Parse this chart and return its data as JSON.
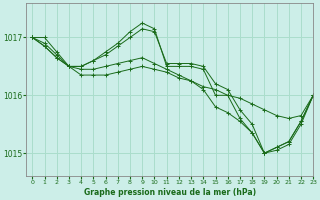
{
  "title": "Graphe pression niveau de la mer (hPa)",
  "bg_color": "#cceee8",
  "grid_color": "#aaddcc",
  "line_color": "#1a6b1a",
  "xlim": [
    -0.5,
    23
  ],
  "ylim": [
    1014.6,
    1017.6
  ],
  "yticks": [
    1015,
    1016,
    1017
  ],
  "xticks": [
    0,
    1,
    2,
    3,
    4,
    5,
    6,
    7,
    8,
    9,
    10,
    11,
    12,
    13,
    14,
    15,
    16,
    17,
    18,
    19,
    20,
    21,
    22,
    23
  ],
  "figwidth": 3.2,
  "figheight": 2.0,
  "dpi": 100,
  "series": [
    {
      "x": [
        0,
        1,
        2,
        3,
        4,
        5,
        6,
        7,
        8,
        9,
        10,
        11,
        12,
        13,
        14,
        15,
        16,
        17,
        18,
        19,
        20,
        21,
        22,
        23
      ],
      "y": [
        1017.0,
        1017.0,
        1016.75,
        1016.5,
        1016.45,
        1016.45,
        1016.5,
        1016.55,
        1016.6,
        1016.65,
        1016.55,
        1016.45,
        1016.35,
        1016.25,
        1016.15,
        1016.1,
        1016.0,
        1015.95,
        1015.85,
        1015.75,
        1015.65,
        1015.6,
        1015.65,
        1016.0
      ]
    },
    {
      "x": [
        0,
        1,
        2,
        3,
        4,
        5,
        6,
        7,
        8,
        9,
        10,
        11,
        12,
        13,
        14,
        15,
        16,
        17,
        18,
        19,
        20,
        21,
        22,
        23
      ],
      "y": [
        1017.0,
        1016.85,
        1016.65,
        1016.5,
        1016.5,
        1016.6,
        1016.7,
        1016.85,
        1017.0,
        1017.15,
        1017.1,
        1016.55,
        1016.55,
        1016.55,
        1016.5,
        1016.2,
        1016.1,
        1015.75,
        1015.5,
        1015.0,
        1015.1,
        1015.2,
        1015.55,
        1016.0
      ]
    },
    {
      "x": [
        0,
        1,
        2,
        3,
        4,
        5,
        6,
        7,
        8,
        9,
        10,
        11,
        12,
        13,
        14,
        15,
        16,
        17,
        18,
        19,
        20,
        21,
        22,
        23
      ],
      "y": [
        1017.0,
        1016.85,
        1016.65,
        1016.5,
        1016.5,
        1016.6,
        1016.75,
        1016.9,
        1017.1,
        1017.25,
        1017.15,
        1016.5,
        1016.5,
        1016.5,
        1016.45,
        1016.0,
        1016.0,
        1015.6,
        1015.35,
        1015.0,
        1015.1,
        1015.2,
        1015.55,
        1016.0
      ]
    },
    {
      "x": [
        0,
        1,
        2,
        3,
        4,
        5,
        6,
        7,
        8,
        9,
        10,
        11,
        12,
        13,
        14,
        15,
        16,
        17,
        18,
        19,
        20,
        21,
        22,
        23
      ],
      "y": [
        1017.0,
        1016.9,
        1016.7,
        1016.5,
        1016.35,
        1016.35,
        1016.35,
        1016.4,
        1016.45,
        1016.5,
        1016.45,
        1016.4,
        1016.3,
        1016.25,
        1016.1,
        1015.8,
        1015.7,
        1015.55,
        1015.35,
        1015.0,
        1015.05,
        1015.15,
        1015.5,
        1016.0
      ]
    }
  ]
}
